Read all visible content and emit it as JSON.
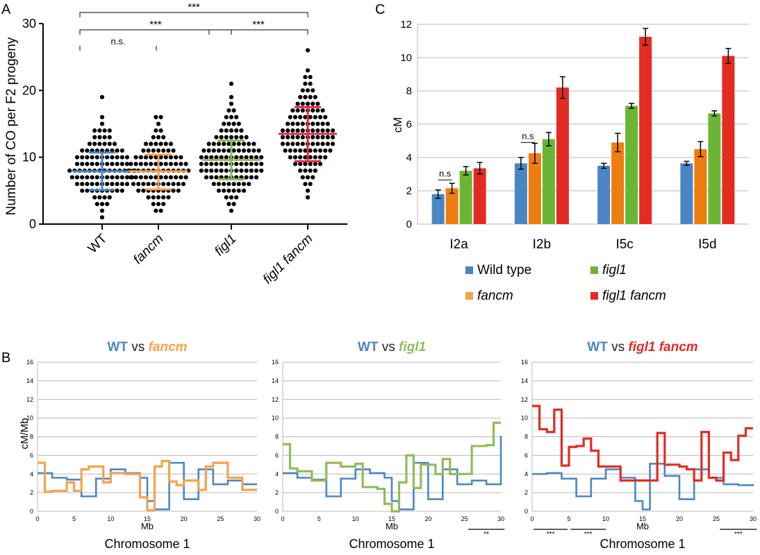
{
  "panel_labels": {
    "a": "A",
    "b": "B",
    "c": "C"
  },
  "colors": {
    "wt": "#4a86c5",
    "fancm": "#f5a24d",
    "fancm_bar": "#ed7d0e",
    "figl1": "#8fbc5a",
    "figl1_bar": "#6bb535",
    "figl1_fancm": "#e32b22",
    "fig1fancm_scatter": "#e8264a",
    "grid": "#b8b8b8",
    "dot": "#000000"
  },
  "panel_a": {
    "ylabel": "Number of CO per F2 progeny",
    "yticks": [
      "0",
      "10",
      "20",
      "30"
    ],
    "groups": [
      "WT",
      "fancm",
      "figl1",
      "figl1 fancm"
    ],
    "sig": [
      {
        "label": "***",
        "from": 0,
        "to": 3
      },
      {
        "label": "***",
        "from": 0,
        "to": 2
      },
      {
        "label": "***",
        "from": 2,
        "to": 3
      },
      {
        "label": "n.s.",
        "from": 0,
        "to": 1
      }
    ]
  },
  "panel_c": {
    "ylabel": "cM",
    "yticks": [
      "0",
      "2",
      "4",
      "6",
      "8",
      "10",
      "12"
    ],
    "categories": [
      "I2a",
      "I2b",
      "I5c",
      "I5d"
    ],
    "ns_labels": [
      "n.s",
      "n.s"
    ],
    "legend": [
      "Wild type",
      "figl1",
      "fancm",
      "figl1 fancm"
    ]
  },
  "panel_b": {
    "ylabel": "cM/Mb",
    "xlabel": "Mb",
    "title_wt": "WT",
    "title_vs": "vs",
    "subplots": [
      {
        "title": "fancm",
        "chromosome": "Chromosome 1",
        "sig": []
      },
      {
        "title": "figl1",
        "chromosome": "Chromosome 1",
        "sig": [
          "**"
        ]
      },
      {
        "title": "figl1 fancm",
        "chromosome": "Chromosome 1",
        "sig": [
          "***",
          "***",
          "***"
        ]
      }
    ],
    "yticks": [
      "0",
      "2",
      "4",
      "6",
      "8",
      "10",
      "12",
      "14",
      "16"
    ],
    "xticks": [
      "0",
      "5",
      "10",
      "15",
      "20",
      "25",
      "30"
    ]
  },
  "chart_data": [
    {
      "type": "scatter",
      "panel": "A",
      "ylabel": "Number of CO per F2 progeny",
      "ylim": [
        0,
        30
      ],
      "categories": [
        "WT",
        "fancm",
        "figl1",
        "figl1 fancm"
      ],
      "mean": [
        7.9,
        7.9,
        9.6,
        13.5
      ],
      "sd_low": [
        5.1,
        5.2,
        6.7,
        9.4
      ],
      "sd_high": [
        10.7,
        10.4,
        12.5,
        17.5
      ],
      "counts": [
        {
          "1": 1,
          "2": 1,
          "3": 3,
          "4": 4,
          "5": 9,
          "6": 11,
          "7": 13,
          "8": 14,
          "9": 11,
          "10": 11,
          "11": 9,
          "12": 6,
          "13": 4,
          "14": 4,
          "15": 1,
          "16": 1,
          "19": 1
        },
        {
          "2": 2,
          "3": 3,
          "4": 5,
          "5": 9,
          "6": 11,
          "7": 12,
          "8": 13,
          "9": 12,
          "10": 10,
          "11": 7,
          "12": 6,
          "13": 3,
          "14": 2,
          "15": 1,
          "16": 2
        },
        {
          "2": 1,
          "3": 2,
          "4": 3,
          "5": 6,
          "6": 8,
          "7": 11,
          "8": 13,
          "9": 13,
          "10": 13,
          "11": 12,
          "12": 10,
          "13": 7,
          "14": 5,
          "15": 4,
          "16": 3,
          "17": 2,
          "18": 1,
          "19": 1,
          "21": 1
        },
        {
          "4": 1,
          "5": 1,
          "6": 2,
          "7": 3,
          "8": 4,
          "9": 6,
          "10": 8,
          "11": 10,
          "12": 11,
          "13": 11,
          "14": 11,
          "15": 9,
          "16": 8,
          "17": 7,
          "18": 5,
          "19": 4,
          "20": 3,
          "21": 2,
          "22": 2,
          "23": 1,
          "26": 1
        }
      ]
    },
    {
      "type": "bar",
      "panel": "C",
      "ylabel": "cM",
      "ylim": [
        0,
        12
      ],
      "categories": [
        "I2a",
        "I2b",
        "I5c",
        "I5d"
      ],
      "series": [
        {
          "name": "Wild type",
          "values": [
            1.8,
            3.65,
            3.5,
            3.65
          ],
          "err": [
            0.25,
            0.35,
            0.15,
            0.12
          ]
        },
        {
          "name": "fancm",
          "values": [
            2.15,
            4.25,
            4.9,
            4.5
          ],
          "err": [
            0.3,
            0.6,
            0.55,
            0.45
          ]
        },
        {
          "name": "figl1",
          "values": [
            3.2,
            5.1,
            7.1,
            6.65
          ],
          "err": [
            0.25,
            0.4,
            0.15,
            0.15
          ]
        },
        {
          "name": "figl1 fancm",
          "values": [
            3.35,
            8.2,
            11.25,
            10.1
          ],
          "err": [
            0.35,
            0.65,
            0.5,
            0.45
          ]
        }
      ]
    },
    {
      "type": "line",
      "panel": "B1",
      "xlabel": "Mb",
      "ylabel": "cM/Mb",
      "xlim": [
        0,
        30
      ],
      "ylim": [
        0,
        16
      ],
      "series": [
        {
          "name": "WT",
          "x": [
            0,
            2,
            4,
            6,
            8,
            10,
            12,
            14,
            15,
            16,
            18,
            20,
            22,
            24,
            26,
            28,
            30
          ],
          "y": [
            4.1,
            3.6,
            3.4,
            1.6,
            3.5,
            4.5,
            4.1,
            3.6,
            1.1,
            0.2,
            5.2,
            1.3,
            4.5,
            2.9,
            3.3,
            2.9,
            2.9
          ]
        },
        {
          "name": "fancm",
          "x": [
            0,
            1,
            2,
            4,
            5,
            6,
            7,
            9,
            10,
            12,
            14,
            15,
            16,
            17,
            18,
            19,
            20,
            22,
            23,
            24,
            26,
            28,
            30
          ],
          "y": [
            5.2,
            2.1,
            2.2,
            3.1,
            2.2,
            4.5,
            4.8,
            3.1,
            4.1,
            4.0,
            1.5,
            0.1,
            4.8,
            5.4,
            3.2,
            2.8,
            3.3,
            2.3,
            4.8,
            5.2,
            3.6,
            2.3,
            2.3
          ]
        }
      ]
    },
    {
      "type": "line",
      "panel": "B2",
      "xlabel": "Mb",
      "ylabel": "cM/Mb",
      "xlim": [
        0,
        30
      ],
      "ylim": [
        0,
        16
      ],
      "series": [
        {
          "name": "WT",
          "x": [
            0,
            2,
            4,
            6,
            8,
            10,
            12,
            14,
            15,
            16,
            18,
            20,
            22,
            24,
            26,
            28,
            30
          ],
          "y": [
            4.1,
            3.6,
            3.4,
            1.6,
            3.5,
            4.5,
            4.1,
            3.6,
            1.1,
            0.2,
            5.2,
            1.3,
            4.5,
            2.9,
            3.3,
            2.9,
            8.1
          ]
        },
        {
          "name": "figl1",
          "x": [
            0,
            1,
            2,
            4,
            6,
            8,
            10,
            11,
            13,
            14,
            15,
            16,
            17,
            18,
            19,
            21,
            22,
            23,
            24,
            26,
            28,
            29,
            30
          ],
          "y": [
            7.2,
            4.6,
            4.3,
            3.3,
            5.2,
            4.8,
            5.1,
            2.6,
            2.4,
            0.8,
            0.0,
            3.1,
            6.0,
            2.5,
            5.0,
            4.0,
            5.6,
            4.0,
            4.0,
            7.0,
            7.1,
            9.5,
            9.5
          ]
        }
      ]
    },
    {
      "type": "line",
      "panel": "B3",
      "xlabel": "Mb",
      "ylabel": "cM/Mb",
      "xlim": [
        0,
        30
      ],
      "ylim": [
        0,
        16
      ],
      "series": [
        {
          "name": "WT",
          "x": [
            0,
            2,
            4,
            6,
            8,
            10,
            12,
            14,
            15,
            16,
            18,
            20,
            22,
            24,
            26,
            28,
            30
          ],
          "y": [
            4.0,
            4.1,
            3.5,
            1.6,
            3.5,
            4.5,
            3.6,
            1.1,
            0.2,
            5.1,
            3.8,
            1.3,
            4.5,
            3.6,
            2.9,
            2.8,
            2.9
          ]
        },
        {
          "name": "figl1 fancm",
          "x": [
            0,
            1,
            2,
            3,
            4,
            5,
            6,
            7,
            8,
            9,
            10,
            12,
            14,
            15,
            16,
            17,
            18,
            19,
            20,
            21,
            22,
            23,
            24,
            25,
            26,
            27,
            28,
            29,
            30
          ],
          "y": [
            11.3,
            8.8,
            8.5,
            10.9,
            4.9,
            6.9,
            7.0,
            7.8,
            6.5,
            4.8,
            4.8,
            3.3,
            3.3,
            3.3,
            3.3,
            8.4,
            5.0,
            5.0,
            4.8,
            4.5,
            3.3,
            8.5,
            3.6,
            3.3,
            6.3,
            5.5,
            8.1,
            8.9,
            8.9
          ]
        }
      ]
    }
  ]
}
